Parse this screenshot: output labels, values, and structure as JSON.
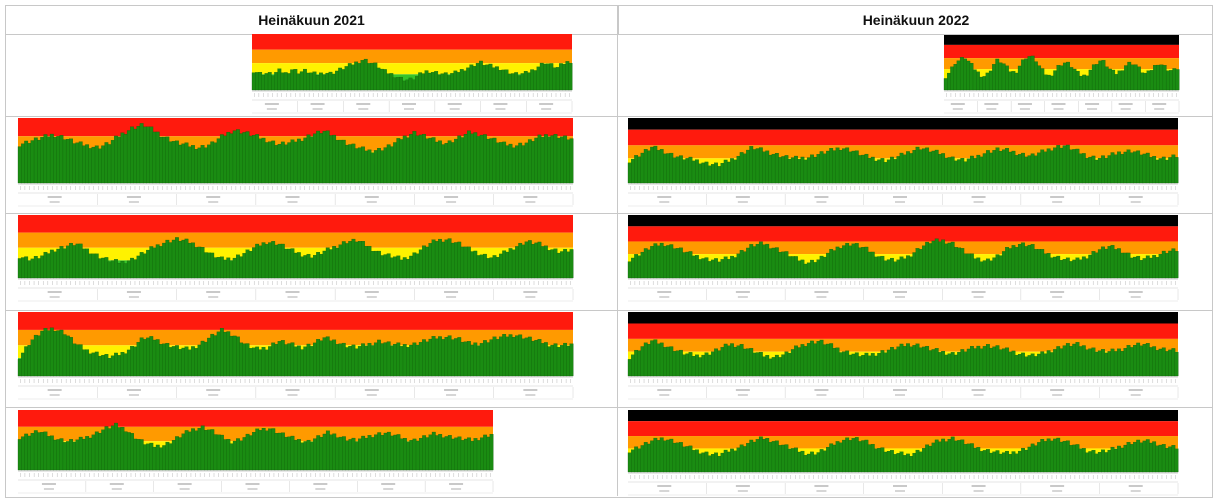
{
  "headers": {
    "left": "Heinäkuun 2021",
    "right": "Heinäkuun 2022"
  },
  "colors": {
    "red": "#ff1a0d",
    "orange": "#ff9a00",
    "yellow": "#fff200",
    "black": "#000000",
    "green": "#1a8c12",
    "greenLight": "#35c42a"
  },
  "chart_data": [
    {
      "type": "area",
      "series": [
        {
          "values": [
            0.35,
            0.3,
            0.3,
            0.28,
            0.35,
            0.3,
            0.38,
            0.32,
            0.35,
            0.3,
            0.28,
            0.32,
            0.3,
            0.35,
            0.4,
            0.45,
            0.5,
            0.55,
            0.5,
            0.45,
            0.35,
            0.3,
            0.25,
            0.2,
            0.18,
            0.22,
            0.3,
            0.35,
            0.32,
            0.3,
            0.28,
            0.3,
            0.35,
            0.4,
            0.45,
            0.5,
            0.45,
            0.42,
            0.4,
            0.35,
            0.3,
            0.28,
            0.3,
            0.35,
            0.42,
            0.5,
            0.45,
            0.4,
            0.48,
            0.52
          ]
        }
      ]
    },
    {
      "type": "area",
      "series": [
        {
          "values": [
            0.6,
            0.65,
            0.7,
            0.75,
            0.7,
            0.62,
            0.58,
            0.55,
            0.62,
            0.75,
            0.85,
            0.9,
            0.8,
            0.7,
            0.62,
            0.58,
            0.55,
            0.6,
            0.72,
            0.82,
            0.78,
            0.72,
            0.66,
            0.6,
            0.62,
            0.68,
            0.75,
            0.8,
            0.72,
            0.62,
            0.55,
            0.5,
            0.52,
            0.58,
            0.7,
            0.78,
            0.72,
            0.65,
            0.62,
            0.7,
            0.78,
            0.75,
            0.68,
            0.6,
            0.58,
            0.62,
            0.7,
            0.75,
            0.72,
            0.68
          ]
        }
      ]
    },
    {
      "type": "area",
      "series": [
        {
          "values": [
            0.35,
            0.3,
            0.35,
            0.45,
            0.5,
            0.55,
            0.45,
            0.35,
            0.28,
            0.25,
            0.3,
            0.4,
            0.5,
            0.58,
            0.62,
            0.58,
            0.5,
            0.38,
            0.3,
            0.32,
            0.4,
            0.5,
            0.58,
            0.55,
            0.45,
            0.38,
            0.35,
            0.42,
            0.5,
            0.58,
            0.6,
            0.5,
            0.4,
            0.35,
            0.3,
            0.38,
            0.5,
            0.6,
            0.62,
            0.55,
            0.45,
            0.38,
            0.32,
            0.4,
            0.5,
            0.58,
            0.55,
            0.48,
            0.42,
            0.45
          ]
        }
      ]
    },
    {
      "type": "area",
      "series": [
        {
          "values": [
            0.3,
            0.55,
            0.7,
            0.75,
            0.68,
            0.5,
            0.4,
            0.35,
            0.3,
            0.35,
            0.45,
            0.6,
            0.58,
            0.5,
            0.45,
            0.42,
            0.5,
            0.62,
            0.72,
            0.65,
            0.5,
            0.42,
            0.45,
            0.55,
            0.5,
            0.45,
            0.5,
            0.6,
            0.55,
            0.48,
            0.45,
            0.5,
            0.55,
            0.5,
            0.48,
            0.5,
            0.55,
            0.6,
            0.62,
            0.58,
            0.5,
            0.52,
            0.58,
            0.62,
            0.65,
            0.6,
            0.55,
            0.5,
            0.48,
            0.5
          ]
        }
      ]
    },
    {
      "type": "area",
      "series": [
        {
          "values": [
            0.55,
            0.6,
            0.65,
            0.58,
            0.52,
            0.48,
            0.5,
            0.55,
            0.62,
            0.7,
            0.75,
            0.68,
            0.55,
            0.45,
            0.4,
            0.42,
            0.5,
            0.6,
            0.68,
            0.72,
            0.65,
            0.55,
            0.48,
            0.52,
            0.6,
            0.68,
            0.7,
            0.62,
            0.55,
            0.5,
            0.48,
            0.55,
            0.62,
            0.58,
            0.52,
            0.5,
            0.55,
            0.6,
            0.62,
            0.58,
            0.52,
            0.5,
            0.55,
            0.6,
            0.58,
            0.55,
            0.52,
            0.5,
            0.55,
            0.6
          ]
        }
      ]
    },
    {
      "type": "area",
      "series": [
        {
          "values": [
            0.25,
            0.35,
            0.5,
            0.55,
            0.6,
            0.5,
            0.4,
            0.3,
            0.25,
            0.3,
            0.45,
            0.55,
            0.5,
            0.4,
            0.32,
            0.35,
            0.5,
            0.6,
            0.62,
            0.55,
            0.4,
            0.3,
            0.25,
            0.35,
            0.45,
            0.5,
            0.48,
            0.4,
            0.3,
            0.25,
            0.3,
            0.42,
            0.5,
            0.55,
            0.45,
            0.35,
            0.3,
            0.35,
            0.45,
            0.5,
            0.48,
            0.38,
            0.3,
            0.32,
            0.42,
            0.5,
            0.45,
            0.38,
            0.35,
            0.4
          ]
        }
      ]
    },
    {
      "type": "area",
      "series": [
        {
          "values": [
            0.35,
            0.45,
            0.55,
            0.5,
            0.42,
            0.38,
            0.35,
            0.3,
            0.28,
            0.35,
            0.45,
            0.55,
            0.5,
            0.45,
            0.4,
            0.38,
            0.4,
            0.45,
            0.5,
            0.55,
            0.5,
            0.42,
            0.38,
            0.35,
            0.4,
            0.48,
            0.55,
            0.5,
            0.45,
            0.38,
            0.35,
            0.4,
            0.48,
            0.52,
            0.5,
            0.45,
            0.42,
            0.48,
            0.55,
            0.58,
            0.5,
            0.42,
            0.38,
            0.42,
            0.48,
            0.5,
            0.45,
            0.4,
            0.38,
            0.42
          ]
        }
      ]
    },
    {
      "type": "area",
      "series": [
        {
          "values": [
            0.3,
            0.4,
            0.5,
            0.55,
            0.5,
            0.42,
            0.35,
            0.3,
            0.28,
            0.32,
            0.42,
            0.52,
            0.55,
            0.48,
            0.4,
            0.3,
            0.25,
            0.3,
            0.42,
            0.52,
            0.55,
            0.48,
            0.38,
            0.3,
            0.28,
            0.35,
            0.48,
            0.58,
            0.6,
            0.55,
            0.42,
            0.32,
            0.28,
            0.35,
            0.48,
            0.55,
            0.52,
            0.42,
            0.35,
            0.3,
            0.28,
            0.35,
            0.45,
            0.5,
            0.45,
            0.35,
            0.3,
            0.35,
            0.42,
            0.45
          ]
        }
      ]
    },
    {
      "type": "area",
      "series": [
        {
          "values": [
            0.3,
            0.45,
            0.55,
            0.5,
            0.42,
            0.35,
            0.32,
            0.35,
            0.42,
            0.5,
            0.48,
            0.4,
            0.32,
            0.3,
            0.35,
            0.45,
            0.52,
            0.55,
            0.48,
            0.4,
            0.35,
            0.32,
            0.35,
            0.4,
            0.45,
            0.5,
            0.48,
            0.42,
            0.38,
            0.35,
            0.4,
            0.45,
            0.48,
            0.45,
            0.4,
            0.35,
            0.32,
            0.35,
            0.42,
            0.48,
            0.5,
            0.45,
            0.4,
            0.38,
            0.42,
            0.48,
            0.5,
            0.45,
            0.42,
            0.4
          ]
        }
      ]
    },
    {
      "type": "area",
      "series": [
        {
          "values": [
            0.35,
            0.42,
            0.5,
            0.55,
            0.5,
            0.42,
            0.35,
            0.3,
            0.28,
            0.35,
            0.42,
            0.5,
            0.55,
            0.5,
            0.42,
            0.35,
            0.3,
            0.32,
            0.42,
            0.52,
            0.55,
            0.5,
            0.42,
            0.35,
            0.3,
            0.28,
            0.35,
            0.45,
            0.52,
            0.55,
            0.48,
            0.4,
            0.35,
            0.32,
            0.3,
            0.35,
            0.42,
            0.5,
            0.55,
            0.5,
            0.42,
            0.35,
            0.32,
            0.35,
            0.42,
            0.48,
            0.5,
            0.48,
            0.42,
            0.4
          ]
        }
      ]
    }
  ]
}
